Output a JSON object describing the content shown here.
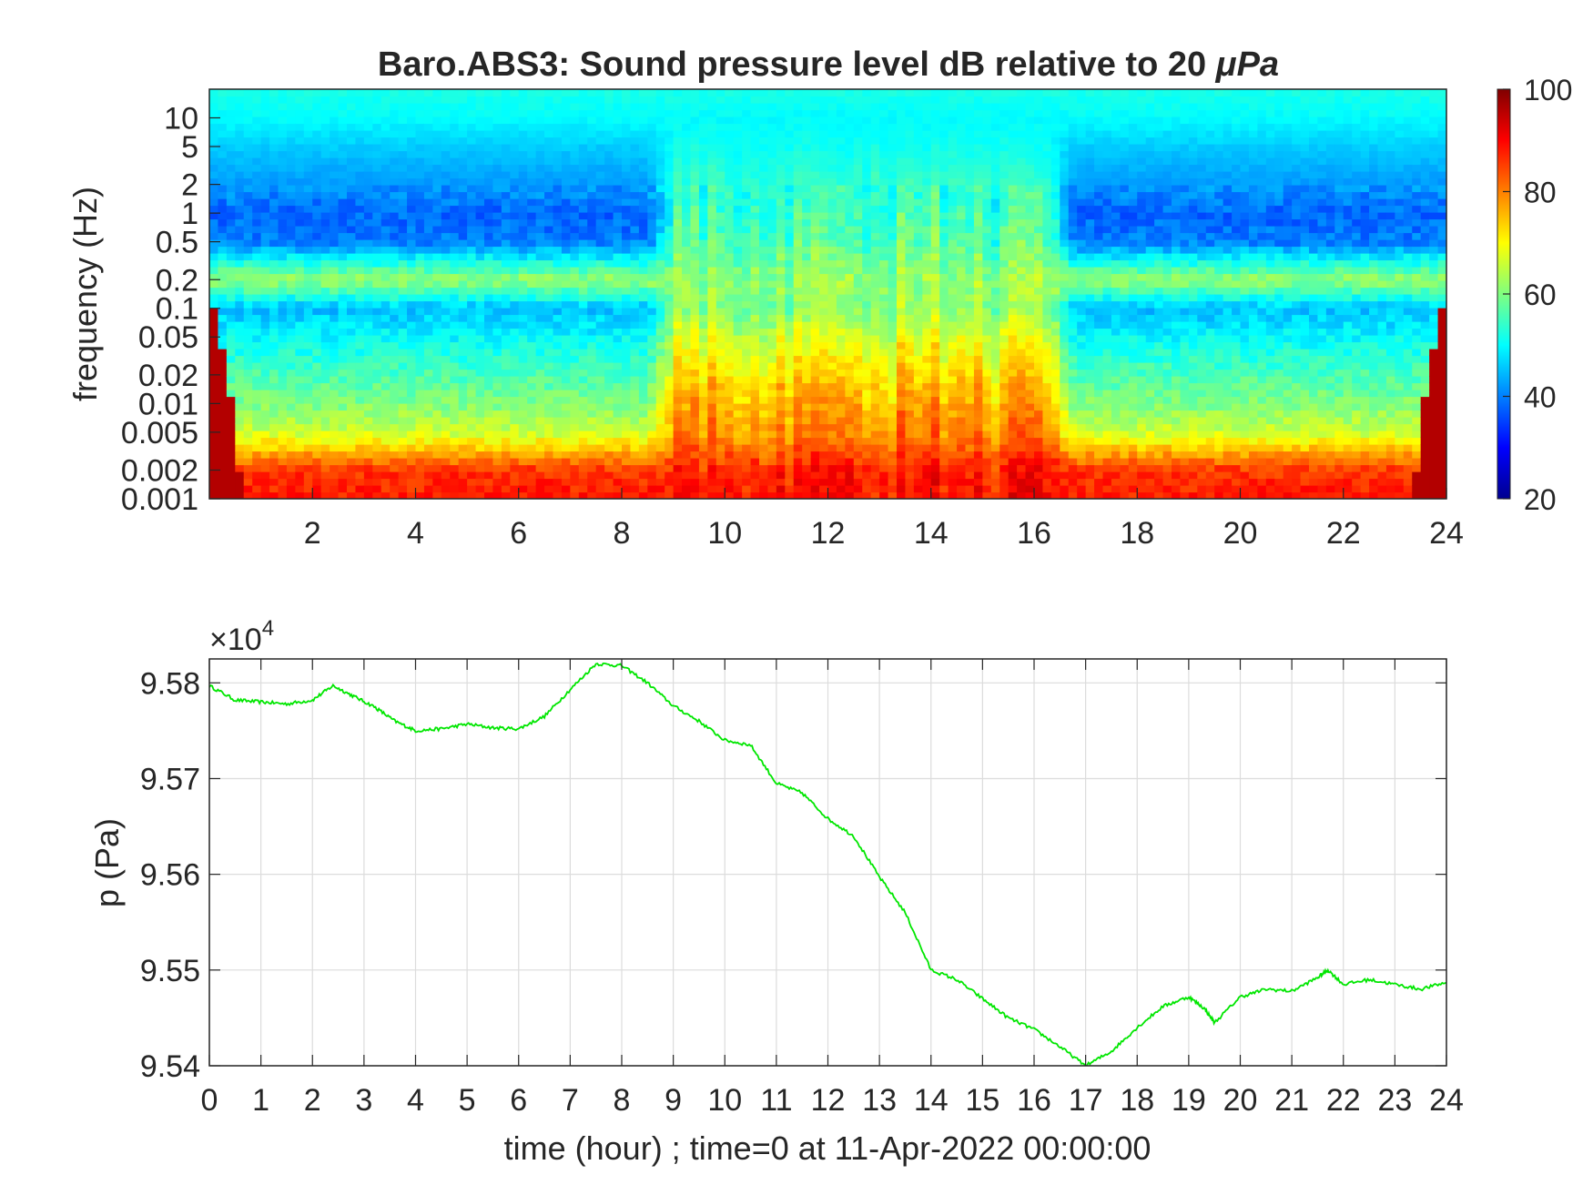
{
  "chart_data": [
    {
      "type": "heatmap",
      "title": "Baro.ABS3: Sound pressure level dB relative to 20 μPa",
      "title_prefix": "Baro.ABS3: Sound pressure level dB relative to 20 ",
      "title_unit": "μPa",
      "xlabel": "",
      "ylabel": "frequency (Hz)",
      "xlim": [
        0,
        24
      ],
      "ylim": [
        0.001,
        20
      ],
      "y_scale": "log",
      "x_ticks": [
        "2",
        "4",
        "6",
        "8",
        "10",
        "12",
        "14",
        "16",
        "18",
        "20",
        "22",
        "24"
      ],
      "x_tick_values": [
        2,
        4,
        6,
        8,
        10,
        12,
        14,
        16,
        18,
        20,
        22,
        24
      ],
      "y_ticks": [
        "0.001",
        "0.002",
        "0.005",
        "0.01",
        "0.02",
        "0.05",
        "0.1",
        "0.2",
        "0.5",
        "1",
        "2",
        "5",
        "10"
      ],
      "y_tick_values": [
        0.001,
        0.002,
        0.005,
        0.01,
        0.02,
        0.05,
        0.1,
        0.2,
        0.5,
        1,
        2,
        5,
        10
      ],
      "colormap": "jet",
      "colorbar": {
        "range": [
          20,
          100
        ],
        "ticks": [
          "20",
          "40",
          "60",
          "80",
          "100"
        ],
        "tick_values": [
          20,
          40,
          60,
          80,
          100
        ]
      },
      "grid": false,
      "spl_profile": {
        "frequencies_hz": [
          0.001,
          0.002,
          0.005,
          0.01,
          0.02,
          0.05,
          0.1,
          0.2,
          0.5,
          1,
          2,
          5,
          10,
          20
        ],
        "quiet_period_db": [
          88,
          86,
          66,
          60,
          56,
          50,
          45,
          62,
          40,
          38,
          42,
          46,
          50,
          52
        ],
        "active_period_db": [
          90,
          88,
          82,
          80,
          76,
          70,
          64,
          62,
          60,
          58,
          56,
          52,
          50,
          52
        ],
        "active_hours": [
          8.5,
          16.8
        ]
      }
    },
    {
      "type": "line",
      "xlabel": "time (hour) ; time=0 at 11-Apr-2022 00:00:00",
      "ylabel": "p (Pa)",
      "exponent_label": "10",
      "exponent_power": "4",
      "xlim": [
        0,
        24
      ],
      "ylim": [
        95400,
        95825
      ],
      "x_ticks": [
        "0",
        "1",
        "2",
        "3",
        "4",
        "5",
        "6",
        "7",
        "8",
        "9",
        "10",
        "11",
        "12",
        "13",
        "14",
        "15",
        "16",
        "17",
        "18",
        "19",
        "20",
        "21",
        "22",
        "23",
        "24"
      ],
      "x_tick_values": [
        0,
        1,
        2,
        3,
        4,
        5,
        6,
        7,
        8,
        9,
        10,
        11,
        12,
        13,
        14,
        15,
        16,
        17,
        18,
        19,
        20,
        21,
        22,
        23,
        24
      ],
      "y_ticks": [
        "9.54",
        "9.55",
        "9.56",
        "9.57",
        "9.58"
      ],
      "y_tick_values": [
        95400,
        95500,
        95600,
        95700,
        95800
      ],
      "grid": true,
      "series": [
        {
          "color": "#00e600",
          "x": [
            0,
            0.5,
            1,
            1.5,
            2,
            2.4,
            2.8,
            3.2,
            3.6,
            4,
            4.5,
            5,
            5.5,
            6,
            6.5,
            7,
            7.5,
            8,
            8.5,
            9,
            9.5,
            10,
            10.5,
            11,
            11.5,
            12,
            12.5,
            13,
            13.5,
            14,
            14.5,
            15,
            15.5,
            16,
            16.5,
            17,
            17.5,
            18,
            18.5,
            19,
            19.3,
            19.5,
            20,
            20.5,
            21,
            21.5,
            21.7,
            22,
            22.5,
            23,
            23.5,
            24
          ],
          "y": [
            95797,
            95782,
            95780,
            95778,
            95782,
            95797,
            95786,
            95775,
            95760,
            95750,
            95752,
            95757,
            95753,
            95752,
            95765,
            95793,
            95820,
            95818,
            95800,
            95776,
            95760,
            95740,
            95735,
            95695,
            95685,
            95658,
            95640,
            95597,
            95560,
            95500,
            95490,
            95470,
            95450,
            95438,
            95420,
            95400,
            95415,
            95440,
            95462,
            95472,
            95460,
            95445,
            95472,
            95480,
            95478,
            95492,
            95500,
            95485,
            95490,
            95485,
            95480,
            95487
          ]
        }
      ]
    }
  ]
}
